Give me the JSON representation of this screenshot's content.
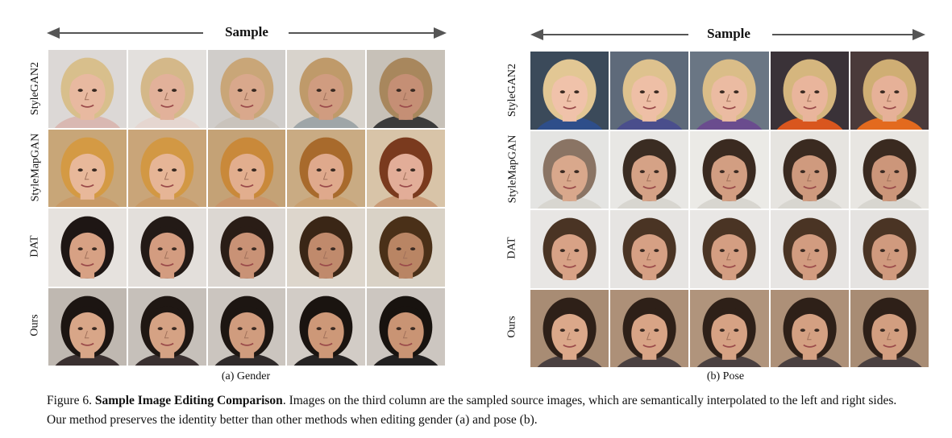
{
  "panels": [
    {
      "id": "gender",
      "arrow_label": "Sample",
      "sub_caption": "(a) Gender",
      "rows": [
        {
          "label": "StyleGAN2",
          "cells": [
            {
              "bg": "#dcd8d6",
              "skin": "#e8b9a0",
              "hair": "#d8bf8c",
              "shirt": "#d9b8b2"
            },
            {
              "bg": "#e3e0dd",
              "skin": "#e2b19a",
              "hair": "#d4b889",
              "shirt": "#e5d6d0"
            },
            {
              "bg": "#d0cdca",
              "skin": "#d9a88c",
              "hair": "#c9a678",
              "shirt": "#c9c3bc"
            },
            {
              "bg": "#d8d3cc",
              "skin": "#d09c80",
              "hair": "#bf9a6a",
              "shirt": "#9fa6a8"
            },
            {
              "bg": "#c7c1b8",
              "skin": "#c58f75",
              "hair": "#a8875d",
              "shirt": "#3b3b3b"
            }
          ]
        },
        {
          "label": "StyleMapGAN",
          "cells": [
            {
              "bg": "#c8a678",
              "skin": "#e8b89a",
              "hair": "#d49a44",
              "shirt": "#c99a66"
            },
            {
              "bg": "#c9a579",
              "skin": "#e6b596",
              "hair": "#d29844",
              "shirt": "#c99a66"
            },
            {
              "bg": "#c4a276",
              "skin": "#e2ae8e",
              "hair": "#c9893a",
              "shirt": "#c9956a"
            },
            {
              "bg": "#c9ab83",
              "skin": "#dfa98c",
              "hair": "#a86a2c",
              "shirt": "#c9a070"
            },
            {
              "bg": "#d8c4a8",
              "skin": "#e2ad98",
              "hair": "#7a3a1e",
              "shirt": "#c99a76"
            }
          ]
        },
        {
          "label": "DAT",
          "cells": [
            {
              "bg": "#e6e2de",
              "skin": "#d7a184",
              "hair": "#1e1614",
              "shirt": "#e6e2de"
            },
            {
              "bg": "#e3dfdb",
              "skin": "#d39c80",
              "hair": "#231a16",
              "shirt": "#e3dfdb"
            },
            {
              "bg": "#dcd7d2",
              "skin": "#c99276",
              "hair": "#2a1d16",
              "shirt": "#dcd7d2"
            },
            {
              "bg": "#ddd6cc",
              "skin": "#c08a6c",
              "hair": "#3a2616",
              "shirt": "#ddd6cc"
            },
            {
              "bg": "#d9d2c6",
              "skin": "#b98564",
              "hair": "#4a3018",
              "shirt": "#d9d2c6"
            }
          ]
        },
        {
          "label": "Ours",
          "cells": [
            {
              "bg": "#bfb8b1",
              "skin": "#d8a688",
              "hair": "#1c1512",
              "shirt": "#3a3030"
            },
            {
              "bg": "#c6c0ba",
              "skin": "#d5a284",
              "hair": "#1f1713",
              "shirt": "#3a3030"
            },
            {
              "bg": "#cbc5bf",
              "skin": "#d09c7e",
              "hair": "#1d1612",
              "shirt": "#2f2a2a"
            },
            {
              "bg": "#d2ccc6",
              "skin": "#cd9878",
              "hair": "#1a1410",
              "shirt": "#262323"
            },
            {
              "bg": "#ccc6c0",
              "skin": "#c99474",
              "hair": "#18130f",
              "shirt": "#222020"
            }
          ]
        }
      ]
    },
    {
      "id": "pose",
      "arrow_label": "Sample",
      "sub_caption": "(b) Pose",
      "rows": [
        {
          "label": "StyleGAN2",
          "cells": [
            {
              "bg": "#3b4a5a",
              "skin": "#f0c2aa",
              "hair": "#e2c794",
              "shirt": "#2e4e8a"
            },
            {
              "bg": "#5e6a7a",
              "skin": "#eebfa6",
              "hair": "#dec28e",
              "shirt": "#4a4e8c"
            },
            {
              "bg": "#6a7684",
              "skin": "#ebbba2",
              "hair": "#dabd88",
              "shirt": "#6a4c8e"
            },
            {
              "bg": "#3a3238",
              "skin": "#e9b59c",
              "hair": "#d5b67e",
              "shirt": "#d9561e"
            },
            {
              "bg": "#4a3a3a",
              "skin": "#e6b198",
              "hair": "#cfae74",
              "shirt": "#e36a1e"
            }
          ]
        },
        {
          "label": "StyleMapGAN",
          "cells": [
            {
              "bg": "#e4e4e2",
              "skin": "#d9a88c",
              "hair": "#8a7464",
              "shirt": "#d8d6d0"
            },
            {
              "bg": "#e8e7e4",
              "skin": "#d5a286",
              "hair": "#3a2c22",
              "shirt": "#d8d6d0"
            },
            {
              "bg": "#ebeae6",
              "skin": "#d29e82",
              "hair": "#3a2a20",
              "shirt": "#d8d6d0"
            },
            {
              "bg": "#e6e4e0",
              "skin": "#cf9a7e",
              "hair": "#3a2a20",
              "shirt": "#d8d6d0"
            },
            {
              "bg": "#e8e6e2",
              "skin": "#cc967a",
              "hair": "#3a2a20",
              "shirt": "#d8d6d0"
            }
          ]
        },
        {
          "label": "DAT",
          "cells": [
            {
              "bg": "#e8e6e4",
              "skin": "#d8a286",
              "hair": "#4a3424",
              "shirt": "#e8e6e4"
            },
            {
              "bg": "#e6e4e2",
              "skin": "#d6a084",
              "hair": "#4a3424",
              "shirt": "#e6e4e2"
            },
            {
              "bg": "#e9e7e5",
              "skin": "#d49e82",
              "hair": "#4a3424",
              "shirt": "#e9e7e5"
            },
            {
              "bg": "#e7e5e3",
              "skin": "#d29c80",
              "hair": "#4a3424",
              "shirt": "#e7e5e3"
            },
            {
              "bg": "#e5e3e1",
              "skin": "#d09a7e",
              "hair": "#4a3424",
              "shirt": "#e5e3e1"
            }
          ]
        },
        {
          "label": "Ours",
          "cells": [
            {
              "bg": "#a88c74",
              "skin": "#dba88a",
              "hair": "#2e2018",
              "shirt": "#4a4040"
            },
            {
              "bg": "#ad9078",
              "skin": "#d8a486",
              "hair": "#2e2018",
              "shirt": "#4a4040"
            },
            {
              "bg": "#b0947c",
              "skin": "#d6a284",
              "hair": "#2e2018",
              "shirt": "#4a4040"
            },
            {
              "bg": "#ad9078",
              "skin": "#d4a082",
              "hair": "#2e2018",
              "shirt": "#4a4040"
            },
            {
              "bg": "#a88c74",
              "skin": "#d29e80",
              "hair": "#2e2018",
              "shirt": "#4a4040"
            }
          ]
        }
      ]
    }
  ],
  "caption": {
    "prefix": "Figure 6.",
    "title": "Sample Image Editing Comparison",
    "body": ". Images on the third column are the sampled source images, which are semantically interpolated to the left and right sides. Our method preserves the identity better than other methods when editing gender (a) and pose (b)."
  }
}
